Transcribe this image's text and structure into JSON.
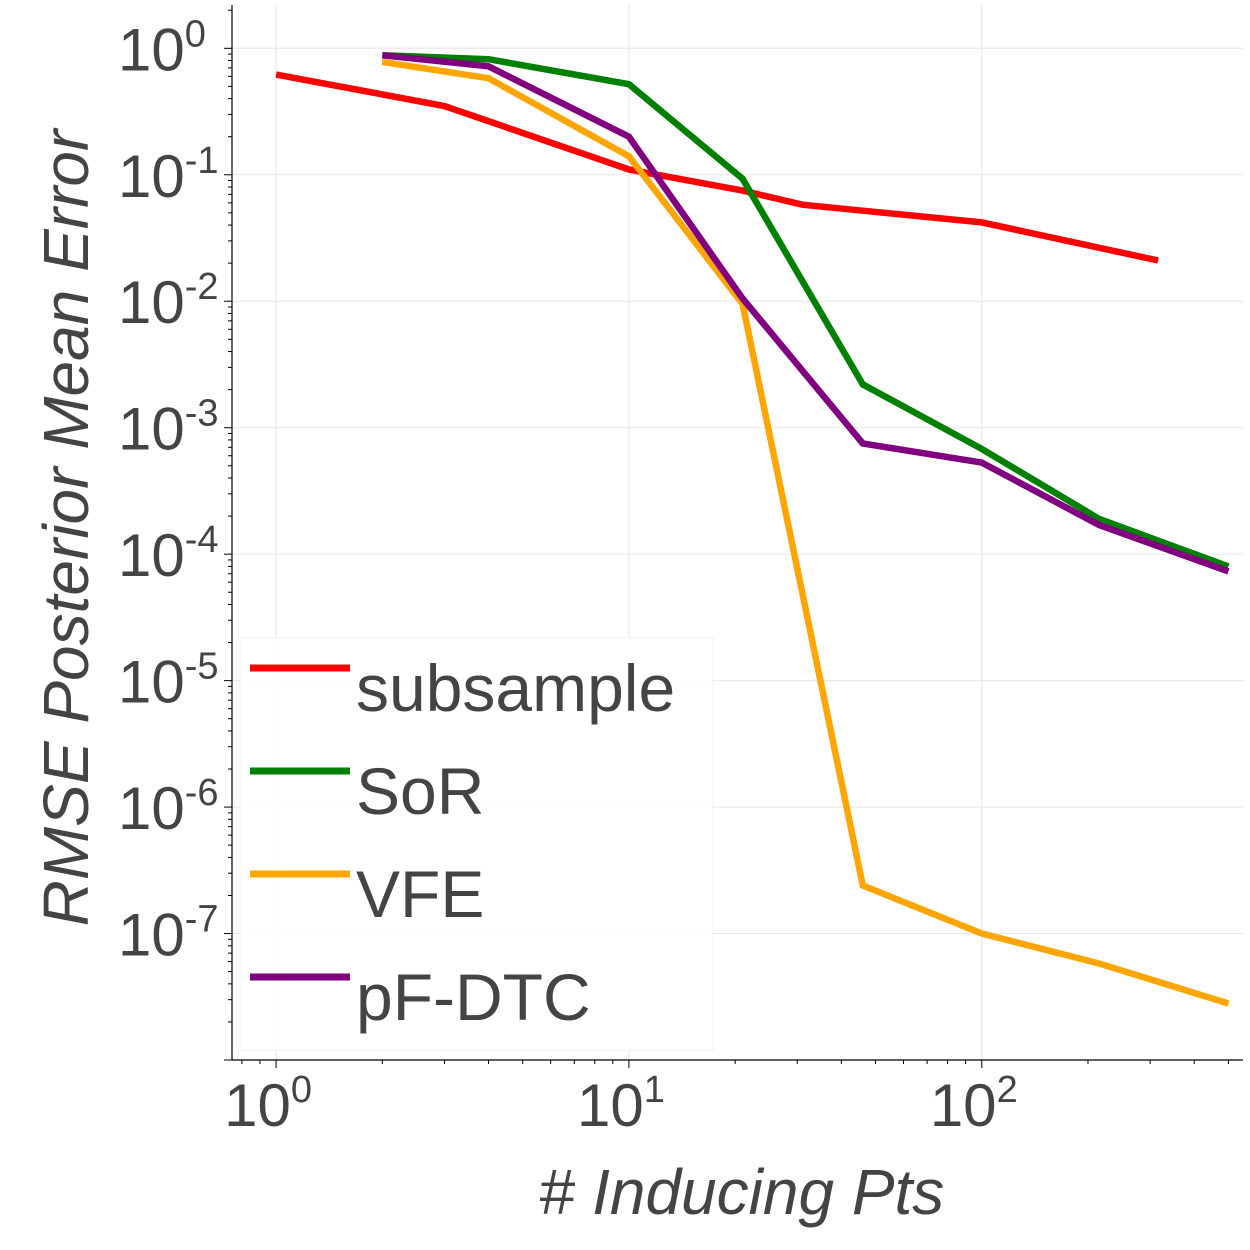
{
  "chart_data": {
    "type": "line",
    "xscale": "log",
    "yscale": "log",
    "xlabel": "# Inducing Pts",
    "ylabel": "RMSE Posterior Mean Error",
    "xlim": [
      0.75,
      550
    ],
    "ylim": [
      1e-08,
      2.2
    ],
    "x_ticks": [
      {
        "value": 1,
        "base": "10",
        "exp": "0"
      },
      {
        "value": 10,
        "base": "10",
        "exp": "1"
      },
      {
        "value": 100,
        "base": "10",
        "exp": "2"
      }
    ],
    "y_ticks": [
      {
        "value": 1,
        "base": "10",
        "exp": "0"
      },
      {
        "value": 0.1,
        "base": "10",
        "exp": "-1"
      },
      {
        "value": 0.01,
        "base": "10",
        "exp": "-2"
      },
      {
        "value": 0.001,
        "base": "10",
        "exp": "-3"
      },
      {
        "value": 0.0001,
        "base": "10",
        "exp": "-4"
      },
      {
        "value": 1e-05,
        "base": "10",
        "exp": "-5"
      },
      {
        "value": 1e-06,
        "base": "10",
        "exp": "-6"
      },
      {
        "value": 1e-07,
        "base": "10",
        "exp": "-7"
      }
    ],
    "grid": true,
    "legend_position": "bottom-left",
    "series": [
      {
        "name": "subsample",
        "color": "#ff0000",
        "x": [
          1,
          3,
          10,
          21,
          31,
          46,
          100,
          316
        ],
        "y": [
          0.62,
          0.35,
          0.11,
          0.075,
          0.058,
          0.052,
          0.042,
          0.021
        ]
      },
      {
        "name": "SoR",
        "color": "#008000",
        "x": [
          2,
          4,
          10,
          21,
          46,
          100,
          215,
          500
        ],
        "y": [
          0.88,
          0.82,
          0.52,
          0.093,
          0.0022,
          0.00068,
          0.00019,
          8e-05
        ]
      },
      {
        "name": "VFE",
        "color": "#ffa500",
        "x": [
          2,
          4,
          10,
          21,
          46,
          100,
          215,
          500
        ],
        "y": [
          0.78,
          0.58,
          0.14,
          0.0095,
          2.4e-07,
          1e-07,
          5.8e-08,
          2.8e-08
        ]
      },
      {
        "name": "pF-DTC",
        "color": "#800080",
        "x": [
          2,
          4,
          10,
          21,
          46,
          100,
          215,
          500
        ],
        "y": [
          0.88,
          0.72,
          0.2,
          0.0105,
          0.00075,
          0.00053,
          0.00017,
          7.3e-05
        ]
      }
    ]
  }
}
